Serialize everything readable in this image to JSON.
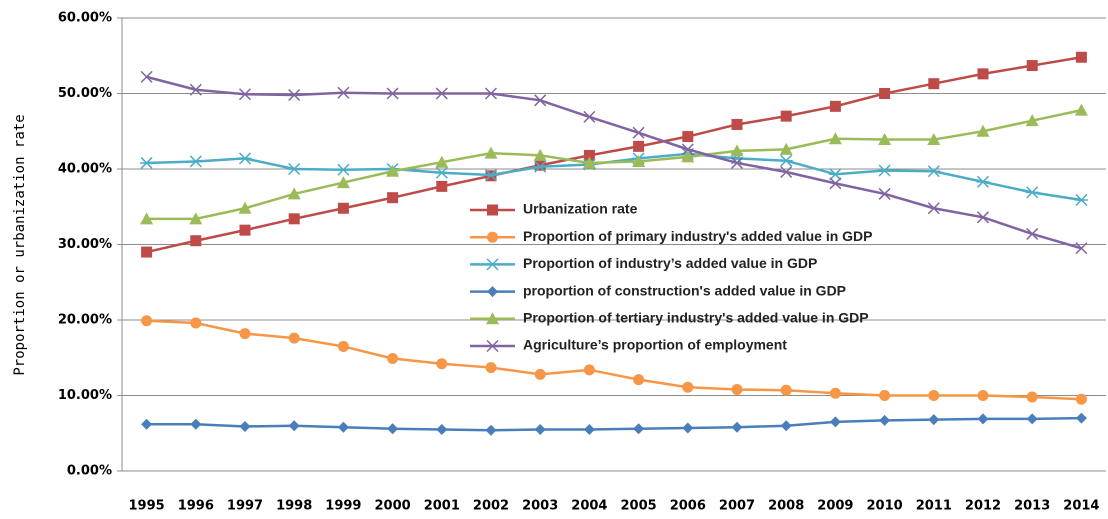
{
  "chart_data": {
    "type": "line",
    "y_label": "Proportion or urbanization rate",
    "categories": [
      "1995",
      "1996",
      "1997",
      "1998",
      "1999",
      "2000",
      "2001",
      "2002",
      "2003",
      "2004",
      "2005",
      "2006",
      "2007",
      "2008",
      "2009",
      "2010",
      "2011",
      "2012",
      "2013",
      "2014"
    ],
    "series": [
      {
        "name": "Urbanization rate",
        "color": "#be4b48",
        "marker": "square",
        "values": [
          29.0,
          30.5,
          31.9,
          33.4,
          34.8,
          36.2,
          37.7,
          39.1,
          40.5,
          41.8,
          43.0,
          44.3,
          45.9,
          47.0,
          48.3,
          50.0,
          51.3,
          52.6,
          53.7,
          54.8
        ]
      },
      {
        "name": "Proportion of primary industry's added value in GDP",
        "color": "#f79646",
        "marker": "circle",
        "values": [
          19.9,
          19.6,
          18.2,
          17.6,
          16.5,
          14.9,
          14.2,
          13.7,
          12.8,
          13.4,
          12.1,
          11.1,
          10.8,
          10.7,
          10.3,
          10.0,
          10.0,
          10.0,
          9.8,
          9.5
        ]
      },
      {
        "name": "Proportion of industry’s added value in GDP",
        "color": "#4bacc6",
        "marker": "asterisk",
        "values": [
          40.8,
          41.0,
          41.4,
          40.0,
          39.9,
          40.0,
          39.5,
          39.2,
          40.3,
          40.6,
          41.4,
          42.0,
          41.4,
          41.1,
          39.3,
          39.8,
          39.7,
          38.3,
          36.9,
          35.9
        ]
      },
      {
        "name": "proportion of construction's added value in GDP",
        "color": "#4a7ebb",
        "marker": "diamond",
        "values": [
          6.2,
          6.2,
          5.9,
          6.0,
          5.8,
          5.6,
          5.5,
          5.4,
          5.5,
          5.5,
          5.6,
          5.7,
          5.8,
          6.0,
          6.5,
          6.7,
          6.8,
          6.9,
          6.9,
          7.0
        ]
      },
      {
        "name": "Proportion of tertiary industry's added value in GDP",
        "color": "#9bbb59",
        "marker": "triangle",
        "values": [
          33.4,
          33.4,
          34.8,
          36.7,
          38.2,
          39.7,
          40.9,
          42.1,
          41.8,
          40.8,
          41.0,
          41.6,
          42.4,
          42.6,
          44.0,
          43.9,
          43.9,
          45.0,
          46.4,
          47.8
        ]
      },
      {
        "name": "Agriculture’s proportion of employment",
        "color": "#8064a2",
        "marker": "x",
        "values": [
          52.2,
          50.5,
          49.9,
          49.8,
          50.1,
          50.0,
          50.0,
          50.0,
          49.1,
          46.9,
          44.8,
          42.6,
          40.8,
          39.6,
          38.1,
          36.7,
          34.8,
          33.6,
          31.4,
          29.5
        ]
      }
    ],
    "ylim": [
      0,
      60
    ],
    "yticks": [
      {
        "value": 0,
        "label": "0.00%"
      },
      {
        "value": 10,
        "label": "10.00%"
      },
      {
        "value": 20,
        "label": "20.00%"
      },
      {
        "value": 30,
        "label": "30.00%"
      },
      {
        "value": 40,
        "label": "40.00%"
      },
      {
        "value": 50,
        "label": "50.00%"
      },
      {
        "value": 60,
        "label": "60.00%"
      }
    ],
    "grid": true,
    "legend": "center"
  }
}
